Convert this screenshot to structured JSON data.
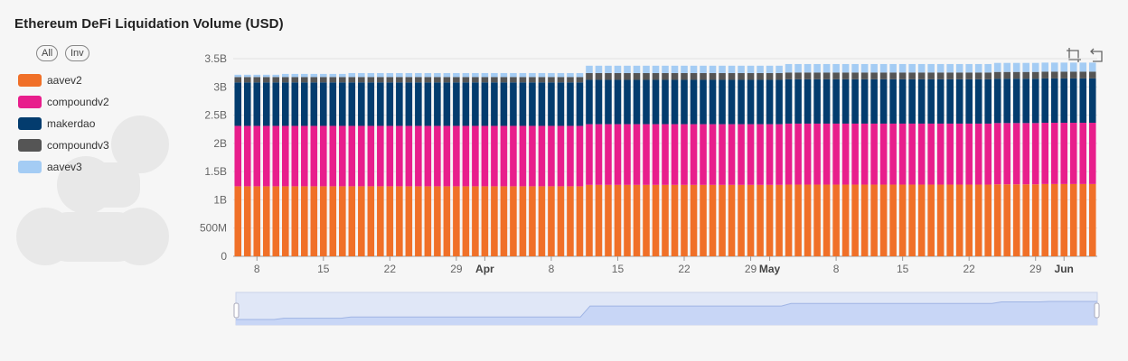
{
  "header": {
    "title": "Ethereum DeFi Liquidation Volume (USD)",
    "all_label": "All",
    "inv_label": "Inv"
  },
  "legend": [
    {
      "label": "aavev2",
      "color": "#f07028"
    },
    {
      "label": "compoundv2",
      "color": "#e81e8c"
    },
    {
      "label": "makerdao",
      "color": "#033c6e"
    },
    {
      "label": "compoundv3",
      "color": "#555555"
    },
    {
      "label": "aavev3",
      "color": "#a4ccf4"
    }
  ],
  "toolbar": {
    "zoom_icon": "zoom-select-icon",
    "restore_icon": "zoom-restore-icon"
  },
  "chart_data": {
    "type": "bar",
    "stacked": true,
    "title": "Ethereum DeFi Liquidation Volume (USD)",
    "xlabel": "",
    "ylabel": "",
    "ylim": [
      0,
      3500000000
    ],
    "y_ticks": [
      "0",
      "500M",
      "1B",
      "1.5B",
      "2B",
      "2.5B",
      "3B",
      "3.5B"
    ],
    "x_ticks": [
      "8",
      "15",
      "22",
      "29",
      "Apr",
      "8",
      "15",
      "22",
      "29",
      "May",
      "8",
      "15",
      "22",
      "29",
      "Jun"
    ],
    "start_date": "2023-03-06",
    "end_date": "2023-06-04",
    "grid": true,
    "legend_position": "left",
    "series": [
      {
        "name": "aavev2",
        "step_days": [
          0,
          37,
          58,
          80,
          85
        ],
        "values_by_step": [
          1240000000,
          1265000000,
          1270000000,
          1275000000,
          1280000000
        ]
      },
      {
        "name": "compoundv2",
        "step_days": [
          0,
          37,
          58,
          80
        ],
        "values_by_step": [
          1070000000,
          1075000000,
          1080000000,
          1085000000
        ]
      },
      {
        "name": "makerdao",
        "step_days": [
          0,
          37
        ],
        "values_by_step": [
          770000000,
          785000000
        ]
      },
      {
        "name": "compoundv3",
        "step_days": [
          0,
          37
        ],
        "values_by_step": [
          95000000,
          120000000
        ]
      },
      {
        "name": "aavev3",
        "step_days": [
          0,
          5,
          12,
          37,
          58,
          80
        ],
        "values_by_step": [
          40000000,
          55000000,
          70000000,
          130000000,
          150000000,
          160000000
        ]
      }
    ]
  }
}
